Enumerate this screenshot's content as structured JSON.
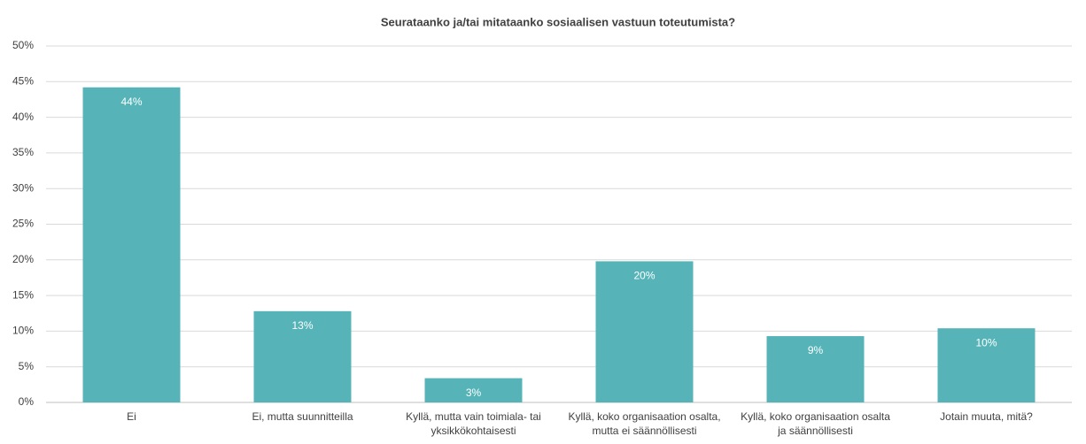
{
  "chart_data": {
    "type": "bar",
    "title": "Seurataanko ja/tai mitataanko sosiaalisen vastuun toteutumista?",
    "categories": [
      "Ei",
      "Ei, mutta suunnitteilla",
      "Kyllä, mutta vain toimiala- tai yksikkökohtaisesti",
      "Kyllä, koko organisaation osalta, mutta ei säännöllisesti",
      "Kyllä, koko organisaation osalta ja säännöllisesti",
      "Jotain muuta, mitä?"
    ],
    "values": [
      44.2,
      12.8,
      3.4,
      19.8,
      9.3,
      10.4
    ],
    "value_labels": [
      "44%",
      "13%",
      "3%",
      "20%",
      "9%",
      "10%"
    ],
    "color": "#56b4b9",
    "ylim": [
      0,
      50
    ],
    "yticks": [
      {
        "value": 0,
        "label": "0%"
      },
      {
        "value": 5,
        "label": "5%"
      },
      {
        "value": 10,
        "label": "10%"
      },
      {
        "value": 15,
        "label": "15%"
      },
      {
        "value": 20,
        "label": "20%"
      },
      {
        "value": 25,
        "label": "25%"
      },
      {
        "value": 30,
        "label": "30%"
      },
      {
        "value": 35,
        "label": "35%"
      },
      {
        "value": 40,
        "label": "40%"
      },
      {
        "value": 45,
        "label": "45%"
      },
      {
        "value": 50,
        "label": "50%"
      }
    ],
    "grid": true
  }
}
